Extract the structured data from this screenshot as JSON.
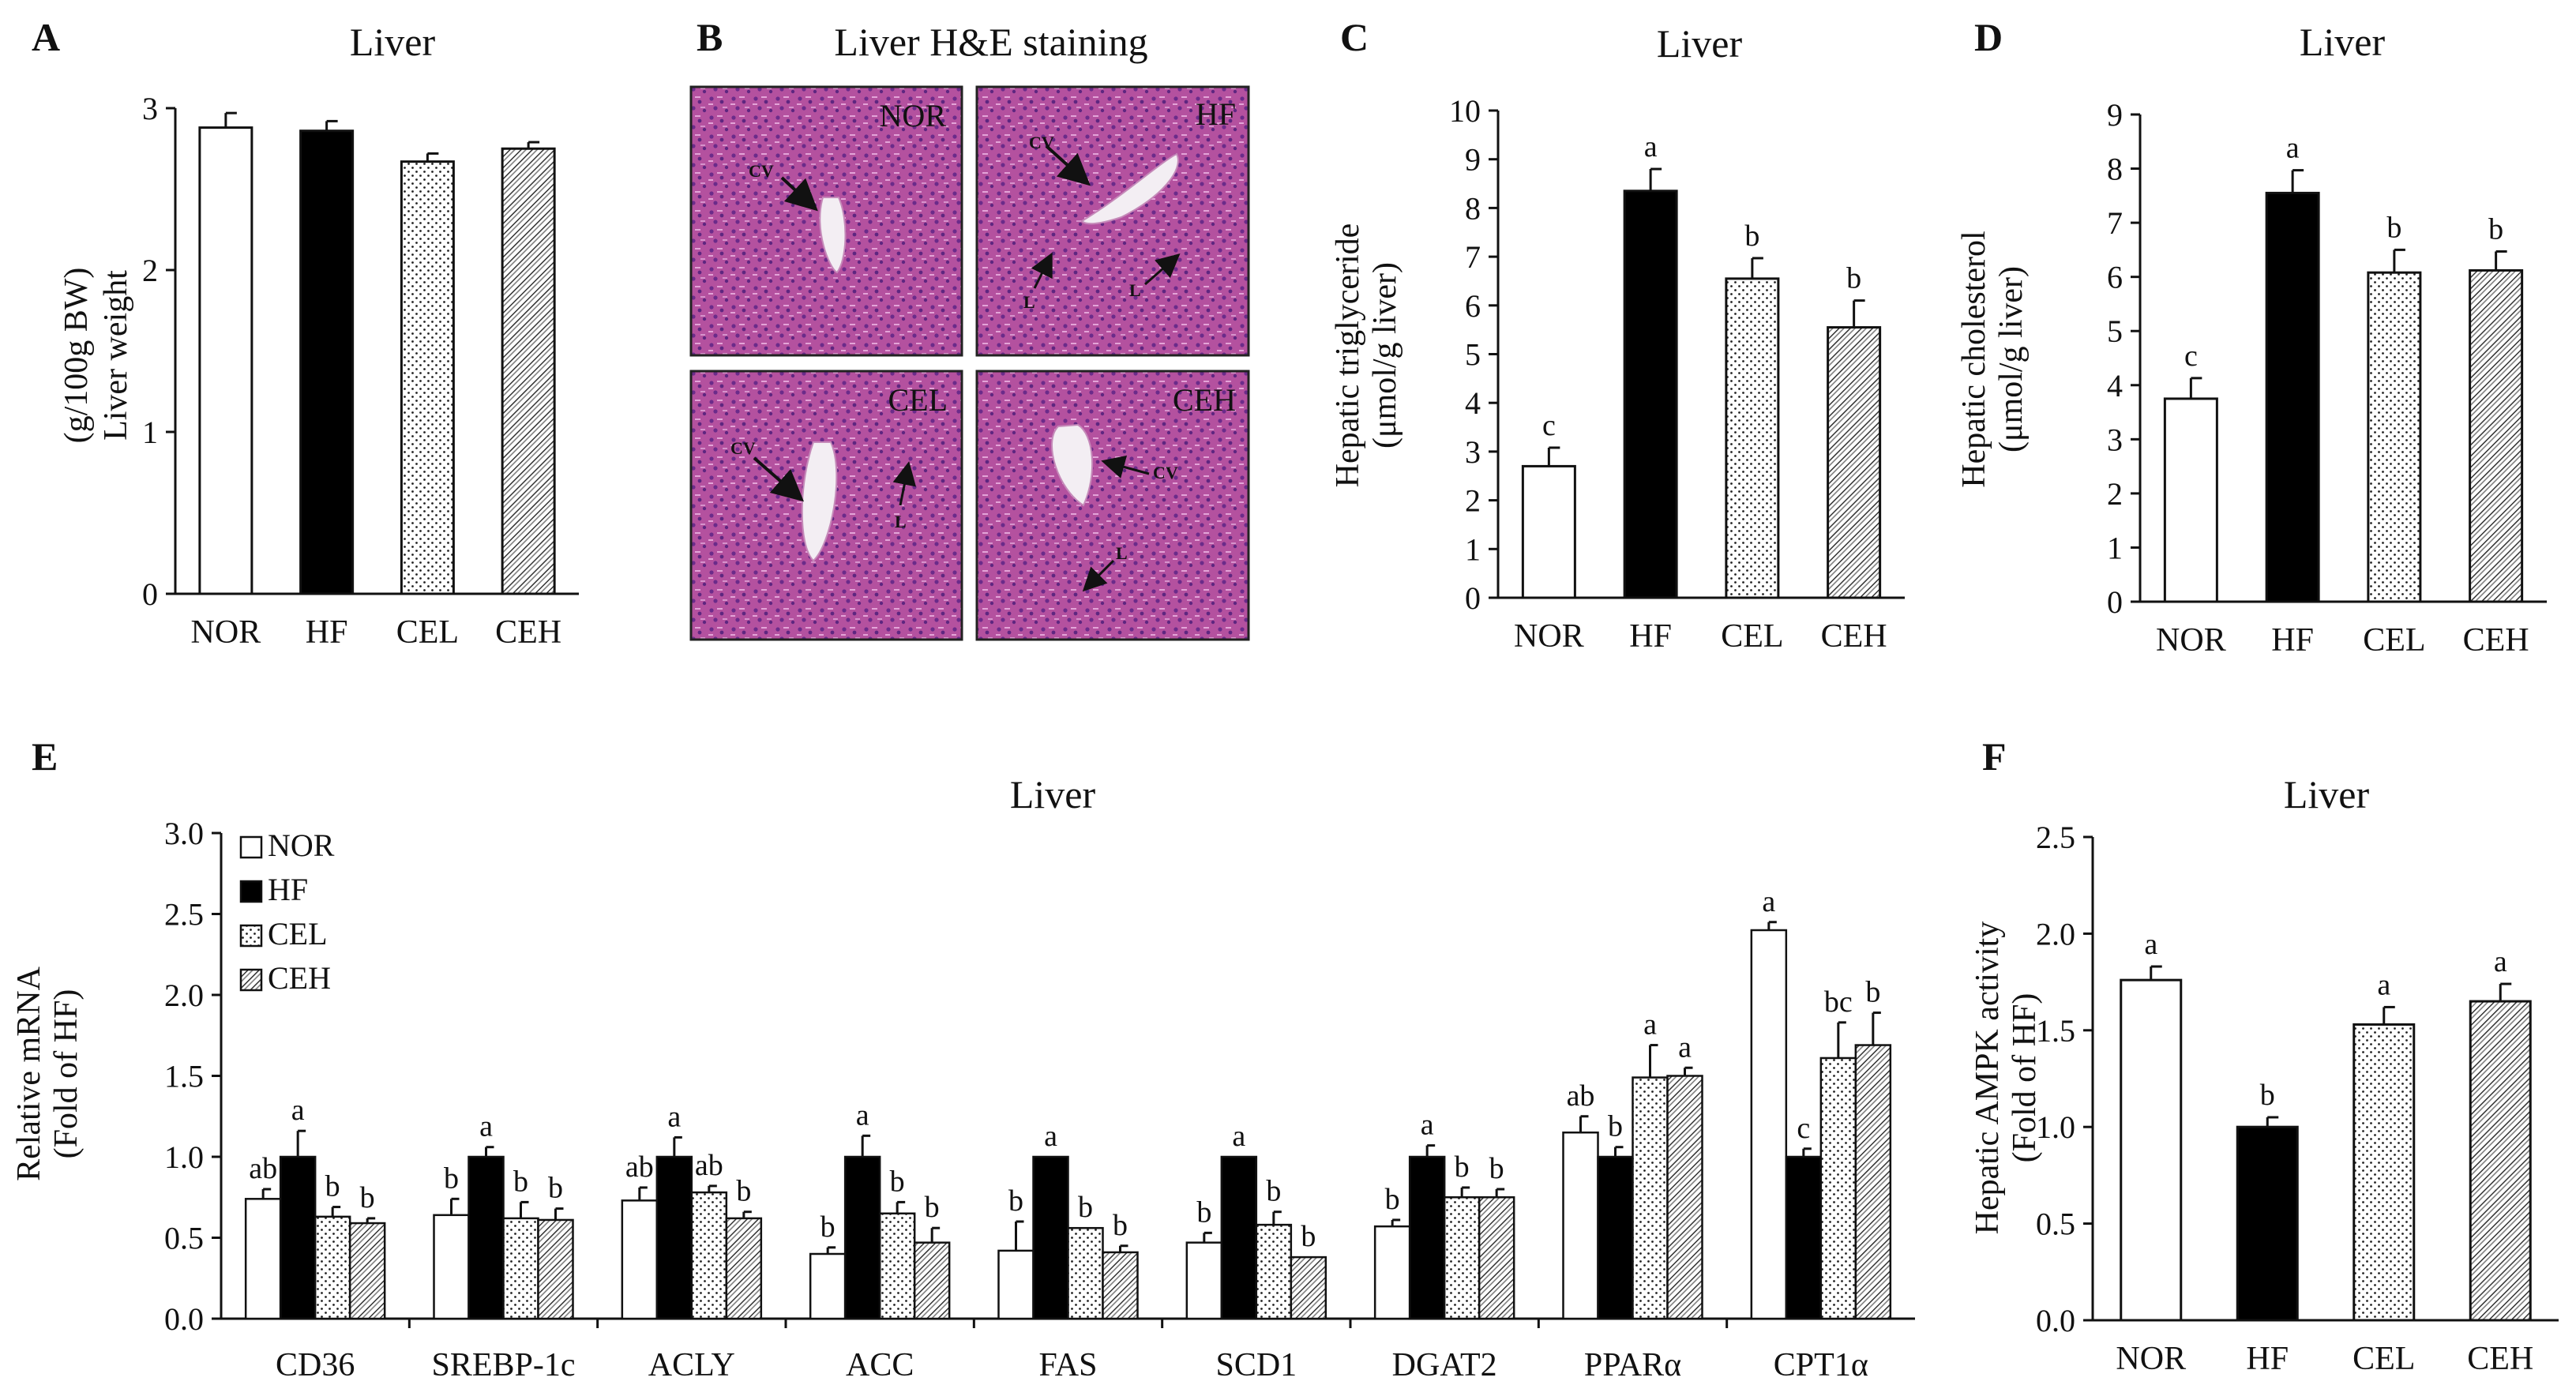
{
  "panels": {
    "A": {
      "letter": "A",
      "title": "Liver"
    },
    "B": {
      "letter": "B",
      "title": "Liver H&E staining"
    },
    "C": {
      "letter": "C",
      "title": "Liver"
    },
    "D": {
      "letter": "D",
      "title": "Liver"
    },
    "E": {
      "letter": "E",
      "title": "Liver"
    },
    "F": {
      "letter": "F",
      "title": "Liver"
    }
  },
  "micrographs": {
    "NOR": {
      "label": "NOR",
      "arrows": [
        "CV"
      ]
    },
    "HF": {
      "label": "HF",
      "arrows": [
        "CV",
        "L",
        "L"
      ]
    },
    "CEL": {
      "label": "CEL",
      "arrows": [
        "CV",
        "L"
      ]
    },
    "CEH": {
      "label": "CEH",
      "arrows": [
        "CV",
        "L"
      ]
    }
  },
  "colors": {
    "NOR": "#ffffff",
    "HF": "#000000",
    "CEL": "dots",
    "CEH": "hatch",
    "tissue": "#b0499c"
  },
  "chart_data": [
    {
      "id": "A",
      "type": "bar",
      "title": "Liver",
      "ylabel": [
        "Liver weight",
        "(g/100g BW)"
      ],
      "categories": [
        "NOR",
        "HF",
        "CEL",
        "CEH"
      ],
      "values": [
        2.88,
        2.86,
        2.67,
        2.75
      ],
      "errors": [
        0.09,
        0.06,
        0.05,
        0.04
      ],
      "letters": [
        "",
        "",
        "",
        ""
      ],
      "ylim": [
        0,
        3
      ],
      "yticks": [
        "0",
        "1",
        "2",
        "3"
      ],
      "ytick_values": [
        0,
        1,
        2,
        3
      ]
    },
    {
      "id": "C",
      "type": "bar",
      "title": "Liver",
      "ylabel": [
        "Hepatic triglyceride",
        "(μmol/g liver)"
      ],
      "categories": [
        "NOR",
        "HF",
        "CEL",
        "CEH"
      ],
      "values": [
        2.7,
        8.35,
        6.55,
        5.55
      ],
      "errors": [
        0.38,
        0.45,
        0.42,
        0.55
      ],
      "letters": [
        "c",
        "a",
        "b",
        "b"
      ],
      "ylim": [
        0,
        10
      ],
      "yticks": [
        "0",
        "1",
        "2",
        "3",
        "4",
        "5",
        "6",
        "7",
        "8",
        "9",
        "10"
      ],
      "ytick_values": [
        0,
        1,
        2,
        3,
        4,
        5,
        6,
        7,
        8,
        9,
        10
      ]
    },
    {
      "id": "D",
      "type": "bar",
      "title": "Liver",
      "ylabel": [
        "Hepatic cholesterol",
        "(μmol/g liver)"
      ],
      "categories": [
        "NOR",
        "HF",
        "CEL",
        "CEH"
      ],
      "values": [
        3.75,
        7.55,
        6.08,
        6.12
      ],
      "errors": [
        0.38,
        0.42,
        0.42,
        0.35
      ],
      "letters": [
        "c",
        "a",
        "b",
        "b"
      ],
      "ylim": [
        0,
        9
      ],
      "yticks": [
        "0",
        "1",
        "2",
        "3",
        "4",
        "5",
        "6",
        "7",
        "8",
        "9"
      ],
      "ytick_values": [
        0,
        1,
        2,
        3,
        4,
        5,
        6,
        7,
        8,
        9
      ]
    },
    {
      "id": "E",
      "type": "bar",
      "title": "Liver",
      "ylabel": [
        "Relative mRNA",
        "(Fold of HF)"
      ],
      "categories": [
        "CD36",
        "SREBP-1c",
        "ACLY",
        "ACC",
        "FAS",
        "SCD1",
        "DGAT2",
        "PPARα",
        "CPT1α"
      ],
      "series": [
        {
          "name": "NOR",
          "values": [
            0.74,
            0.64,
            0.73,
            0.4,
            0.42,
            0.47,
            0.57,
            1.15,
            2.4
          ],
          "errors": [
            0.06,
            0.1,
            0.08,
            0.04,
            0.18,
            0.06,
            0.04,
            0.1,
            0.05
          ],
          "letters": [
            "ab",
            "b",
            "ab",
            "b",
            "b",
            "b",
            "b",
            "ab",
            "a"
          ]
        },
        {
          "name": "HF",
          "values": [
            1.0,
            1.0,
            1.0,
            1.0,
            1.0,
            1.0,
            1.0,
            1.0,
            1.0
          ],
          "errors": [
            0.16,
            0.06,
            0.12,
            0.13,
            0.0,
            0.0,
            0.07,
            0.06,
            0.05
          ],
          "letters": [
            "a",
            "a",
            "a",
            "a",
            "a",
            "a",
            "a",
            "b",
            "c"
          ]
        },
        {
          "name": "CEL",
          "values": [
            0.63,
            0.62,
            0.78,
            0.65,
            0.56,
            0.58,
            0.75,
            1.49,
            1.61
          ],
          "errors": [
            0.06,
            0.1,
            0.04,
            0.07,
            0.0,
            0.08,
            0.06,
            0.2,
            0.22
          ],
          "letters": [
            "b",
            "b",
            "ab",
            "b",
            "b",
            "b",
            "b",
            "a",
            "bc"
          ]
        },
        {
          "name": "CEH",
          "values": [
            0.59,
            0.61,
            0.62,
            0.47,
            0.41,
            0.38,
            0.75,
            1.5,
            1.69
          ],
          "errors": [
            0.03,
            0.07,
            0.04,
            0.09,
            0.04,
            0.0,
            0.05,
            0.05,
            0.2
          ],
          "letters": [
            "b",
            "b",
            "b",
            "b",
            "b",
            "b",
            "b",
            "a",
            "b"
          ]
        }
      ],
      "legend": [
        "NOR",
        "HF",
        "CEL",
        "CEH"
      ],
      "ylim": [
        0,
        3
      ],
      "yticks": [
        "0.0",
        "0.5",
        "1.0",
        "1.5",
        "2.0",
        "2.5",
        "3.0"
      ],
      "ytick_values": [
        0,
        0.5,
        1,
        1.5,
        2,
        2.5,
        3
      ]
    },
    {
      "id": "F",
      "type": "bar",
      "title": "Liver",
      "ylabel": [
        "Hepatic AMPK activity",
        "(Fold of HF)"
      ],
      "categories": [
        "NOR",
        "HF",
        "CEL",
        "CEH"
      ],
      "values": [
        1.76,
        1.0,
        1.53,
        1.65
      ],
      "errors": [
        0.07,
        0.05,
        0.09,
        0.09
      ],
      "letters": [
        "a",
        "b",
        "a",
        "a"
      ],
      "ylim": [
        0,
        2.5
      ],
      "yticks": [
        "0.0",
        "0.5",
        "1.0",
        "1.5",
        "2.0",
        "2.5"
      ],
      "ytick_values": [
        0,
        0.5,
        1,
        1.5,
        2,
        2.5
      ]
    }
  ]
}
